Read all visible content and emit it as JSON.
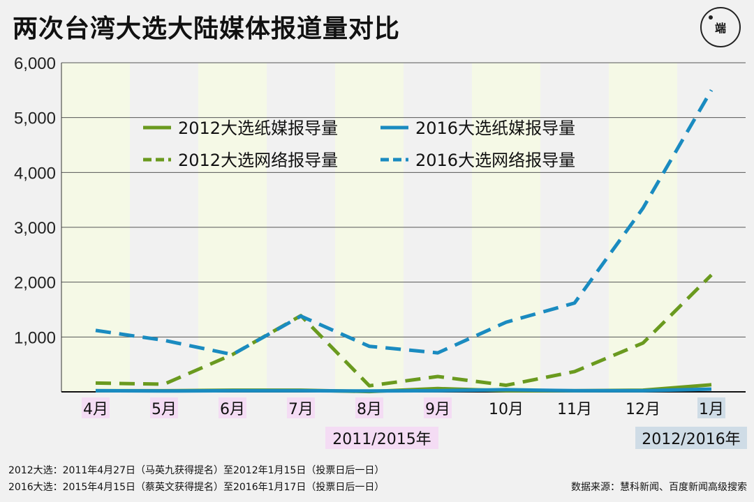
{
  "title": "两次台湾大选大陆媒体报道量对比",
  "logo_text": "端",
  "chart_data": {
    "type": "line",
    "categories": [
      "4月",
      "5月",
      "6月",
      "7月",
      "8月",
      "9月",
      "10月",
      "11月",
      "12月",
      "1月"
    ],
    "series": [
      {
        "name": "2012大选纸媒报导量",
        "values": [
          20,
          20,
          30,
          30,
          5,
          60,
          20,
          20,
          30,
          130
        ],
        "color": "#6a9a1f",
        "style": "solid"
      },
      {
        "name": "2016大选纸媒报导量",
        "values": [
          20,
          15,
          20,
          20,
          15,
          20,
          40,
          20,
          20,
          50
        ],
        "color": "#1a8bc0",
        "style": "solid"
      },
      {
        "name": "2012大选网络报导量",
        "values": [
          160,
          140,
          680,
          1390,
          110,
          280,
          120,
          370,
          890,
          2130
        ],
        "color": "#6a9a1f",
        "style": "dashed"
      },
      {
        "name": "2016大选网络报导量",
        "values": [
          1120,
          940,
          680,
          1380,
          830,
          710,
          1270,
          1620,
          3350,
          5500
        ],
        "color": "#1a8bc0",
        "style": "dashed"
      }
    ],
    "ylim": [
      0,
      6000
    ],
    "yticks": [
      "6,000",
      "5,000",
      "4,000",
      "3,000",
      "2,000",
      "1,000"
    ],
    "ytick_values": [
      6000,
      5000,
      4000,
      3000,
      2000,
      1000
    ],
    "period_label_2011": "2011/2015年",
    "period_label_2012": "2012/2016年",
    "legend_position": "top"
  },
  "footnotes": [
    "2012大选：2011年4月27日（马英九获得提名）至2012年1月15日（投票日后一日）",
    "2016大选：2015年4月15日（蔡英文获得提名）至2016年1月17日（投票日后一日）"
  ],
  "source": "数据来源：慧科新闻、百度新闻高级搜索",
  "colors": {
    "band": "#f5f9e6",
    "month_highlight_2011": "#f4dcf4",
    "month_highlight_2012": "#cfdce6"
  }
}
